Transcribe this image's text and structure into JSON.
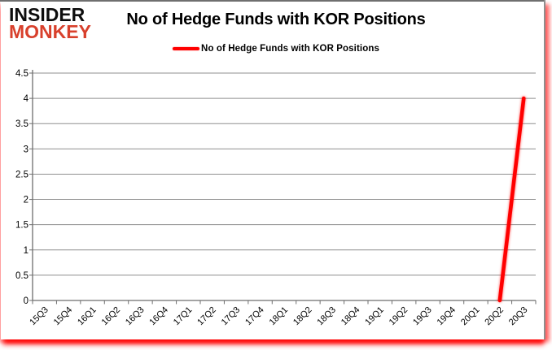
{
  "logo": {
    "line1": "INSIDER",
    "line2": "MONKEY",
    "line1_color": "#0d0d0d",
    "line2_color": "#d8402c"
  },
  "title": {
    "text": "No of Hedge Funds with KOR Positions"
  },
  "legend": {
    "label": "No of Hedge Funds with KOR Positions",
    "swatch_color": "#ff0000"
  },
  "chart_data": {
    "type": "line",
    "title": "No of Hedge Funds with KOR Positions",
    "categories": [
      "15Q3",
      "15Q4",
      "16Q1",
      "16Q2",
      "16Q3",
      "16Q4",
      "17Q1",
      "17Q2",
      "17Q3",
      "17Q4",
      "18Q1",
      "18Q2",
      "18Q3",
      "18Q4",
      "19Q1",
      "19Q2",
      "19Q3",
      "19Q4",
      "20Q1",
      "20Q2",
      "20Q3"
    ],
    "series": [
      {
        "name": "No of Hedge Funds with KOR Positions",
        "color": "#ff0000",
        "values": [
          null,
          null,
          null,
          null,
          null,
          null,
          null,
          null,
          null,
          null,
          null,
          null,
          null,
          null,
          null,
          null,
          null,
          null,
          null,
          0,
          4
        ]
      }
    ],
    "xlabel": "",
    "ylabel": "",
    "ylim": [
      0,
      4.5
    ],
    "yticks": [
      0,
      0.5,
      1,
      1.5,
      2,
      2.5,
      3,
      3.5,
      4,
      4.5
    ],
    "grid": true,
    "legend_position": "top",
    "colors": {
      "gridline": "#8f8f8f",
      "axis": "#6e6e6e",
      "tick_label": "#000000"
    }
  }
}
